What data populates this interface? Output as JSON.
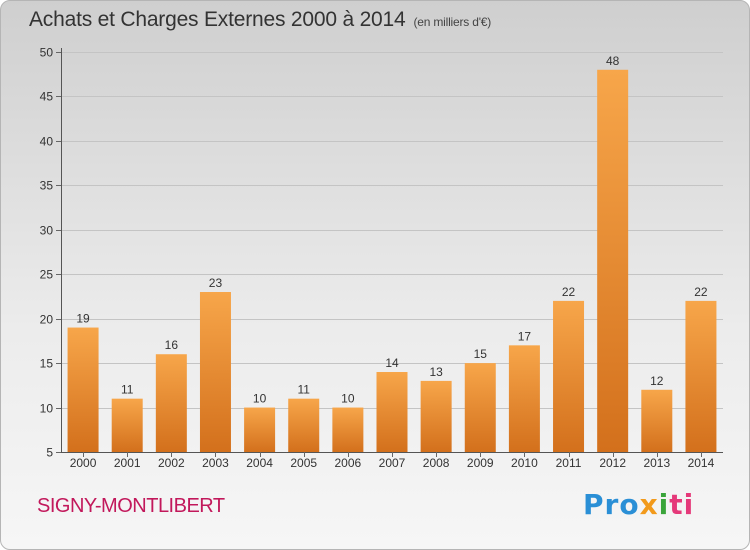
{
  "header": {
    "title": "Achats et Charges Externes 2000 à 2014",
    "unit": "(en milliers d'€)"
  },
  "footer": {
    "place": "SIGNY-MONTLIBERT",
    "logo_parts": [
      "Pro",
      "x",
      "i",
      "ti"
    ]
  },
  "colors": {
    "bar_light": "#f7a64a",
    "bar_dark": "#d3701c",
    "place_text": "#c2185b"
  },
  "chart_data": {
    "type": "bar",
    "title": "Achats et Charges Externes 2000 à 2014",
    "subtitle": "(en milliers d'€)",
    "xlabel": "",
    "ylabel": "",
    "categories": [
      "2000",
      "2001",
      "2002",
      "2003",
      "2004",
      "2005",
      "2006",
      "2007",
      "2008",
      "2009",
      "2010",
      "2011",
      "2012",
      "2013",
      "2014"
    ],
    "values": [
      19,
      11,
      16,
      23,
      10,
      11,
      10,
      14,
      13,
      15,
      17,
      22,
      48,
      12,
      22
    ],
    "ylim": [
      5,
      50
    ],
    "yticks": [
      5,
      10,
      15,
      20,
      25,
      30,
      35,
      40,
      45,
      50
    ],
    "grid": "horizontal",
    "data_labels": true
  }
}
